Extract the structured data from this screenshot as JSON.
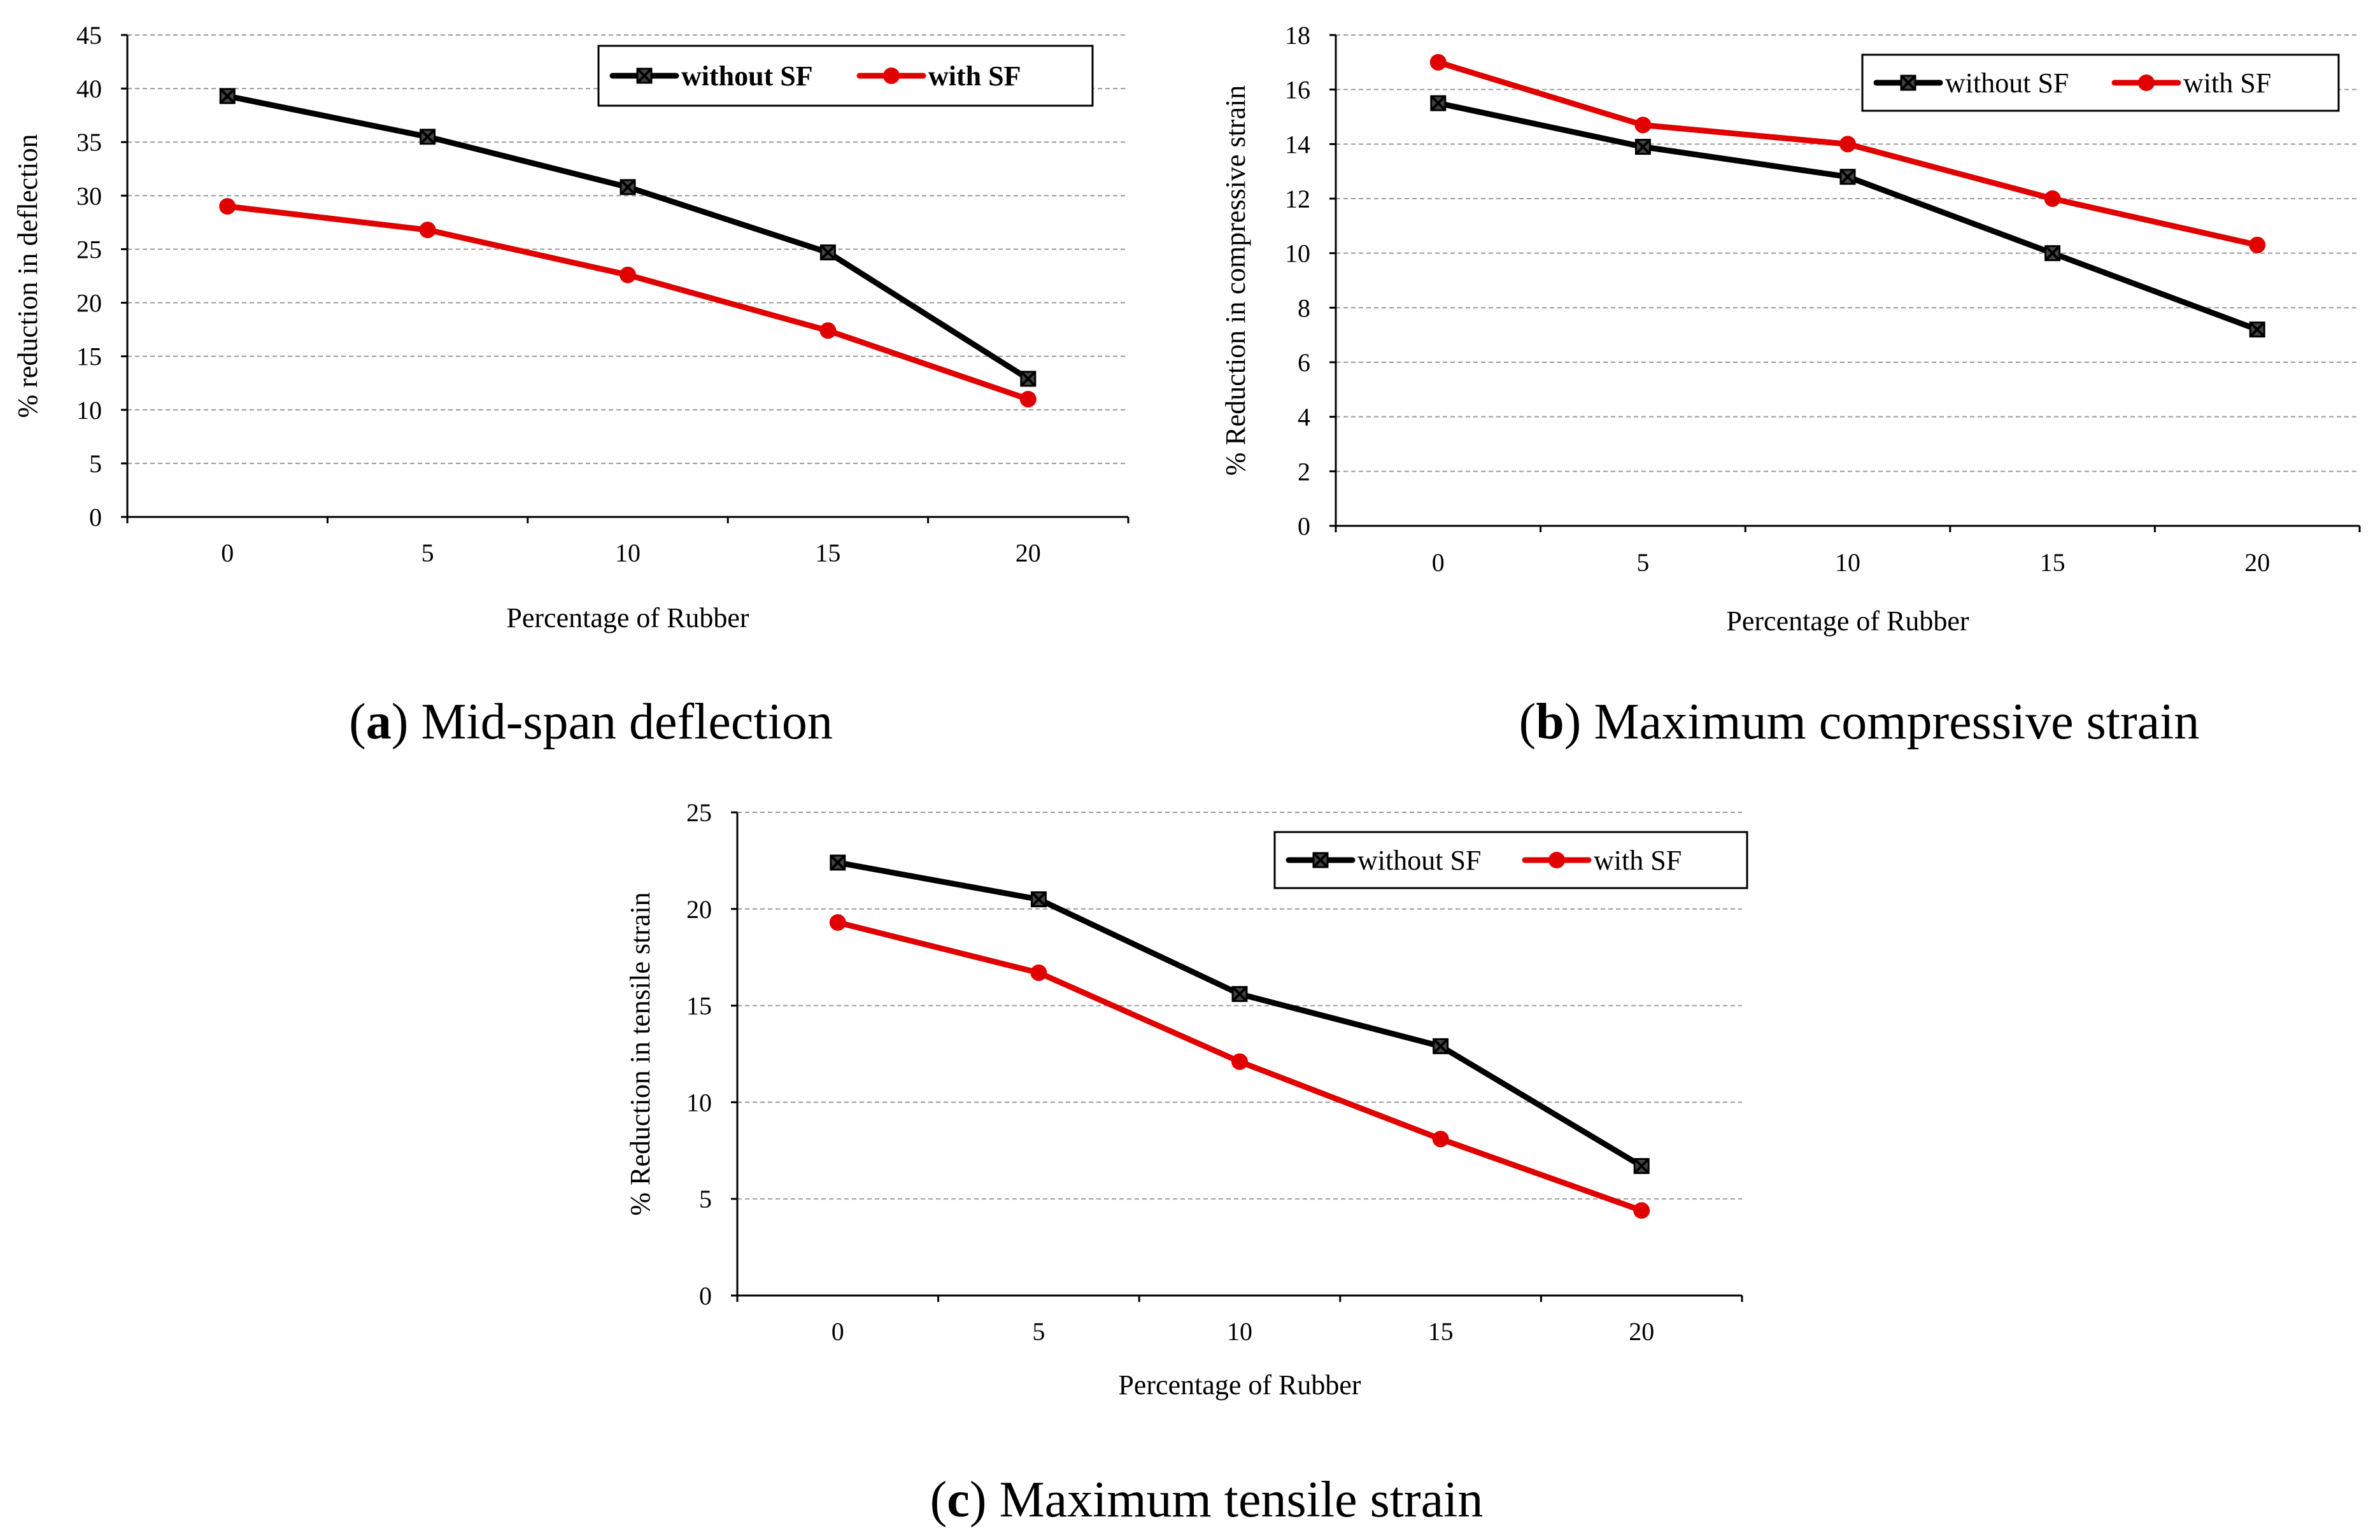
{
  "chart_data": [
    {
      "type": "line",
      "panel": "a",
      "caption_letter": "a",
      "caption_text": "Mid-span deflection",
      "title": "",
      "xlabel": "Percentage of Rubber",
      "ylabel": "% reduction in deflection",
      "categories": [
        "0",
        "5",
        "10",
        "15",
        "20"
      ],
      "ylim": [
        0,
        45
      ],
      "yticks": [
        "0",
        "5",
        "10",
        "15",
        "20",
        "25",
        "30",
        "35",
        "40",
        "45"
      ],
      "grid": true,
      "legend_position": "top-right",
      "legend_bold": true,
      "series": [
        {
          "name": "without SF",
          "color": "#000000",
          "marker": "x-square",
          "values": [
            39.3,
            35.5,
            30.8,
            24.7,
            12.9
          ]
        },
        {
          "name": "with SF",
          "color": "#e00000",
          "marker": "circle",
          "values": [
            29.0,
            26.8,
            22.6,
            17.4,
            11.0
          ]
        }
      ]
    },
    {
      "type": "line",
      "panel": "b",
      "caption_letter": "b",
      "caption_text": "Maximum compressive strain",
      "title": "",
      "xlabel": "Percentage of Rubber",
      "ylabel": "% Reduction in compressive strain",
      "categories": [
        "0",
        "5",
        "10",
        "15",
        "20"
      ],
      "ylim": [
        0,
        18
      ],
      "yticks": [
        "0",
        "2",
        "4",
        "6",
        "8",
        "10",
        "12",
        "14",
        "16",
        "18"
      ],
      "grid": true,
      "legend_position": "top-right",
      "legend_bold": false,
      "series": [
        {
          "name": "without SF",
          "color": "#000000",
          "marker": "x-square",
          "values": [
            15.5,
            13.9,
            12.8,
            10.0,
            7.2
          ]
        },
        {
          "name": "with SF",
          "color": "#e00000",
          "marker": "circle",
          "values": [
            17.0,
            14.7,
            14.0,
            12.0,
            10.3
          ]
        }
      ]
    },
    {
      "type": "line",
      "panel": "c",
      "caption_letter": "c",
      "caption_text": "Maximum tensile strain",
      "title": "",
      "xlabel": "Percentage of Rubber",
      "ylabel": "% Reduction in tensile strain",
      "categories": [
        "0",
        "5",
        "10",
        "15",
        "20"
      ],
      "ylim": [
        0,
        25
      ],
      "yticks": [
        "0",
        "5",
        "10",
        "15",
        "20",
        "25"
      ],
      "grid": true,
      "legend_position": "top-right",
      "legend_bold": false,
      "series": [
        {
          "name": "without SF",
          "color": "#000000",
          "marker": "x-square",
          "values": [
            22.4,
            20.5,
            15.6,
            12.9,
            6.7
          ]
        },
        {
          "name": "with SF",
          "color": "#e00000",
          "marker": "circle",
          "values": [
            19.3,
            16.7,
            12.1,
            8.1,
            4.4
          ]
        }
      ]
    }
  ]
}
